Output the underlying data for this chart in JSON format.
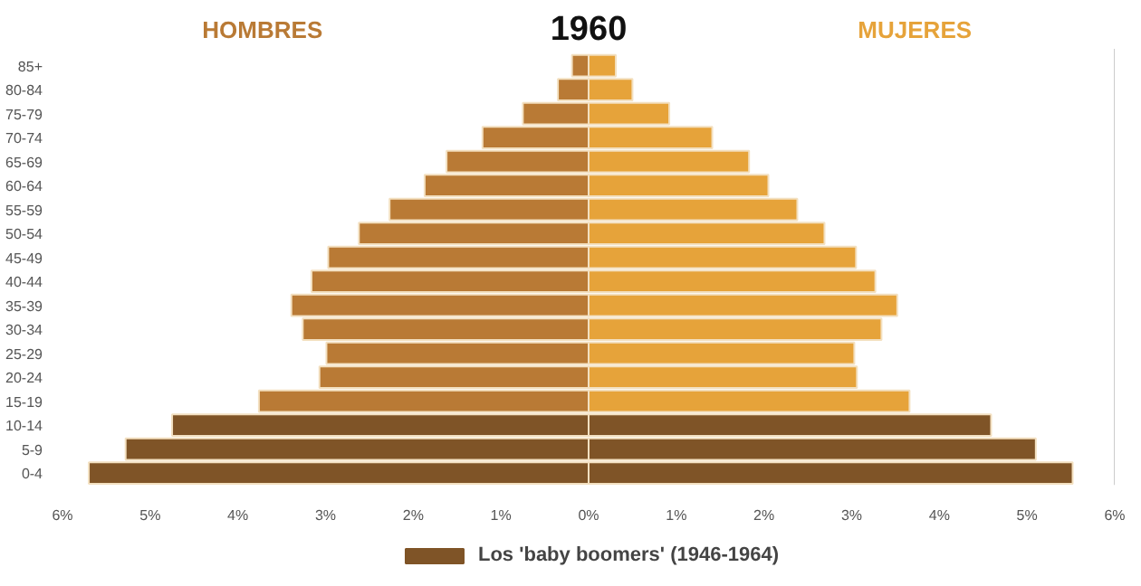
{
  "chart_data": {
    "type": "bar",
    "orientation": "horizontal",
    "title": "1960",
    "categories": [
      "85+",
      "80-84",
      "75-79",
      "70-74",
      "65-69",
      "60-64",
      "55-59",
      "50-54",
      "45-49",
      "40-44",
      "35-39",
      "30-34",
      "25-29",
      "20-24",
      "15-19",
      "10-14",
      "5-9",
      "0-4"
    ],
    "series": [
      {
        "name": "HOMBRES",
        "color": "#b97a35",
        "colors": [
          "#b97a35",
          "#b97a35",
          "#b97a35",
          "#b97a35",
          "#b97a35",
          "#b97a35",
          "#b97a35",
          "#b97a35",
          "#b97a35",
          "#b97a35",
          "#b97a35",
          "#b97a35",
          "#b97a35",
          "#b97a35",
          "#b97a35",
          "#7f5427",
          "#7f5427",
          "#7f5427"
        ],
        "values": [
          -0.19,
          -0.35,
          -0.75,
          -1.21,
          -1.62,
          -1.87,
          -2.27,
          -2.62,
          -2.97,
          -3.16,
          -3.39,
          -3.26,
          -2.99,
          -3.07,
          -3.76,
          -4.75,
          -5.28,
          -5.7
        ]
      },
      {
        "name": "MUJERES",
        "color": "#e6a33a",
        "colors": [
          "#e6a33a",
          "#e6a33a",
          "#e6a33a",
          "#e6a33a",
          "#e6a33a",
          "#e6a33a",
          "#e6a33a",
          "#e6a33a",
          "#e6a33a",
          "#e6a33a",
          "#e6a33a",
          "#e6a33a",
          "#e6a33a",
          "#e6a33a",
          "#e6a33a",
          "#7f5427",
          "#7f5427",
          "#7f5427"
        ],
        "values": [
          0.31,
          0.5,
          0.92,
          1.41,
          1.83,
          2.05,
          2.38,
          2.69,
          3.05,
          3.27,
          3.52,
          3.34,
          3.03,
          3.06,
          3.66,
          4.59,
          5.1,
          5.52
        ]
      },
      {
        "name": "Los 'baby boomers' (1946-1964)",
        "color": "#7f5427",
        "values": [
          null,
          null,
          null,
          null,
          null,
          null,
          null,
          null,
          null,
          null,
          null,
          null,
          null,
          null,
          null,
          null,
          null,
          null
        ]
      }
    ],
    "xlim": [
      -6,
      6
    ],
    "xticks": [
      {
        "value": -6,
        "label": "6%"
      },
      {
        "value": -5,
        "label": "5%"
      },
      {
        "value": -4,
        "label": "4%"
      },
      {
        "value": -3,
        "label": "3%"
      },
      {
        "value": -2,
        "label": "2%"
      },
      {
        "value": -1,
        "label": "1%"
      },
      {
        "value": 0,
        "label": "0%"
      },
      {
        "value": 1,
        "label": "1%"
      },
      {
        "value": 2,
        "label": "2%"
      },
      {
        "value": 3,
        "label": "3%"
      },
      {
        "value": 4,
        "label": "4%"
      },
      {
        "value": 5,
        "label": "5%"
      },
      {
        "value": 6,
        "label": "6%"
      }
    ],
    "stacked": true,
    "legend": "bottom",
    "grid": false
  }
}
